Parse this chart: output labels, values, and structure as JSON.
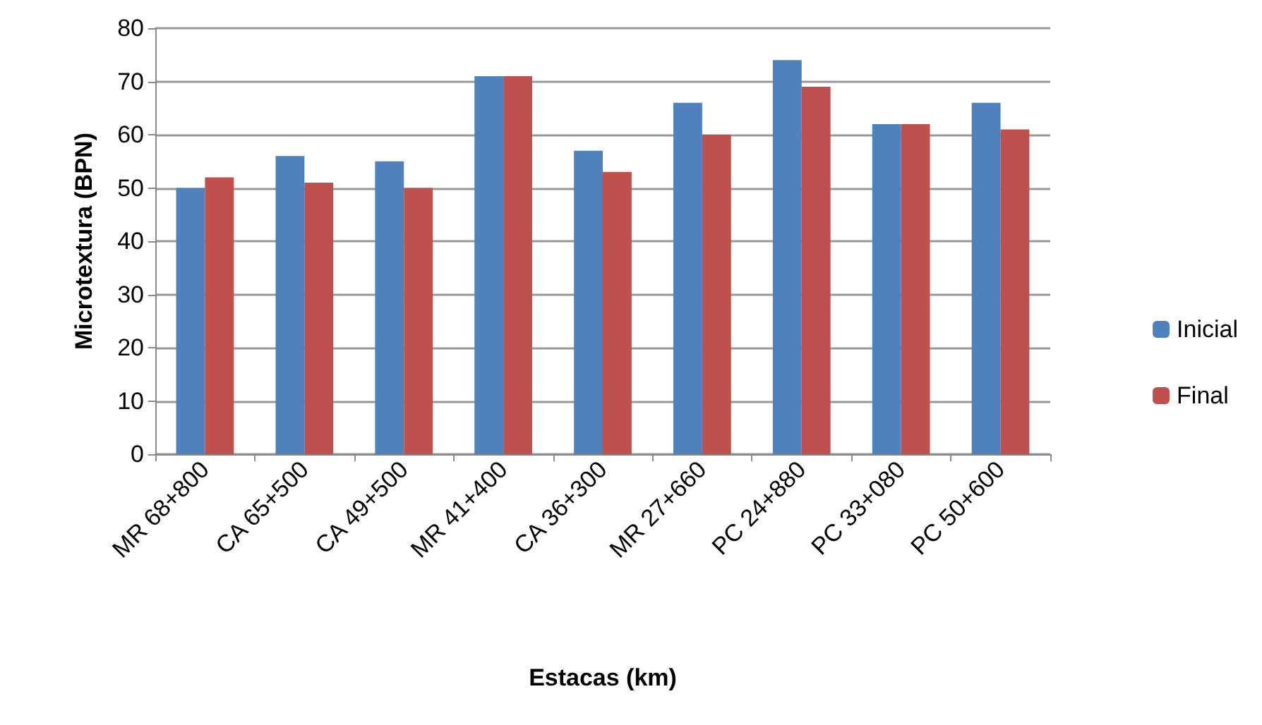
{
  "chart_data": {
    "type": "bar",
    "xlabel": "Estacas (km)",
    "ylabel": "Microtextura (BPN)",
    "categories": [
      "MR 68+800",
      "CA 65+500",
      "CA 49+500",
      "MR 41+400",
      "CA 36+300",
      "MR 27+660",
      "PC 24+880",
      "PC 33+080",
      "PC 50+600"
    ],
    "series": [
      {
        "name": "Inicial",
        "color": "#4f81bd",
        "values": [
          50,
          56,
          55,
          71,
          57,
          66,
          74,
          62,
          66
        ]
      },
      {
        "name": "Final",
        "color": "#c0504d",
        "values": [
          52,
          51,
          50,
          71,
          53,
          60,
          69,
          62,
          61
        ]
      }
    ],
    "ylim": [
      0,
      80
    ],
    "yticks": [
      0,
      10,
      20,
      30,
      40,
      50,
      60,
      70,
      80
    ],
    "grid": "y",
    "legend": "right"
  }
}
